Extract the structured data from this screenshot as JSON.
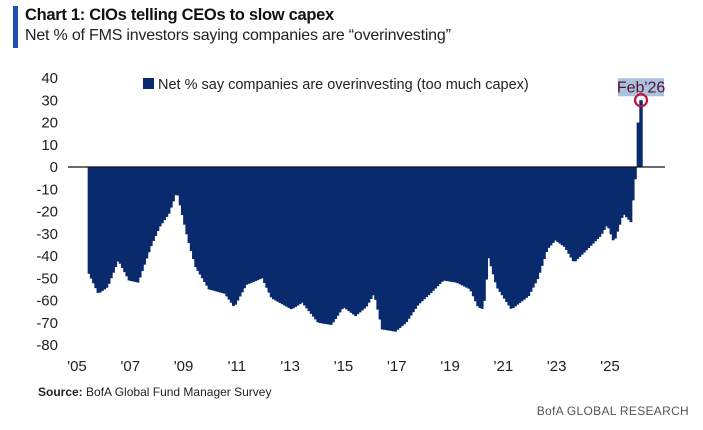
{
  "header": {
    "title": "Chart 1: CIOs telling CEOs to slow capex",
    "subtitle": "Net % of FMS investors saying companies are “overinvesting”"
  },
  "footer": {
    "source_label": "Source:",
    "source_text": "BofA Global Fund Manager Survey",
    "brand": "BofA GLOBAL RESEARCH"
  },
  "colors": {
    "bar": "#0a2a6e",
    "accent": "#1f4fb5",
    "highlight": "#c0143c",
    "annotation_bg": "#a9c3dd",
    "annotation_text": "#5a1030"
  },
  "chart_data": {
    "type": "bar",
    "title": "Chart 1: CIOs telling CEOs to slow capex",
    "subtitle": "Net % of FMS investors saying companies are “overinvesting”",
    "legend": {
      "label": "Net % say companies are overinvesting (too much capex)",
      "placement": "top-left"
    },
    "ylim": [
      -80,
      40
    ],
    "yticks": [
      "40",
      "30",
      "20",
      "10",
      "0",
      "-10",
      "-20",
      "-30",
      "-40",
      "-50",
      "-60",
      "-70",
      "-80"
    ],
    "ytick_values": [
      40,
      30,
      20,
      10,
      0,
      -10,
      -20,
      -30,
      -40,
      -50,
      -60,
      -70,
      -80
    ],
    "xlim": [
      2005,
      2026.6
    ],
    "xticks": [
      "'05",
      "'07",
      "'09",
      "'11",
      "'13",
      "'15",
      "'17",
      "'19",
      "'21",
      "'23",
      "'25"
    ],
    "xtick_values": [
      2005,
      2007,
      2009,
      2011,
      2013,
      2015,
      2017,
      2019,
      2021,
      2023,
      2025
    ],
    "annotation": {
      "label": "Feb'26",
      "x": 2026.1,
      "y": 30
    },
    "series": [
      {
        "name": "Net % say companies are overinvesting (too much capex)",
        "points": [
          [
            2005.4,
            -48
          ],
          [
            2005.75,
            -57
          ],
          [
            2006.1,
            -54
          ],
          [
            2006.5,
            -42
          ],
          [
            2006.9,
            -51
          ],
          [
            2007.25,
            -52
          ],
          [
            2007.45,
            -45
          ],
          [
            2007.75,
            -35
          ],
          [
            2008.05,
            -27
          ],
          [
            2008.4,
            -21
          ],
          [
            2008.7,
            -11
          ],
          [
            2008.85,
            -19
          ],
          [
            2009.1,
            -32
          ],
          [
            2009.4,
            -45
          ],
          [
            2009.9,
            -55
          ],
          [
            2010.5,
            -57
          ],
          [
            2010.85,
            -63
          ],
          [
            2011.3,
            -53
          ],
          [
            2011.9,
            -50
          ],
          [
            2012.25,
            -59
          ],
          [
            2013.0,
            -64
          ],
          [
            2013.4,
            -61
          ],
          [
            2014.0,
            -70
          ],
          [
            2014.5,
            -71
          ],
          [
            2014.95,
            -63
          ],
          [
            2015.4,
            -67
          ],
          [
            2015.8,
            -63
          ],
          [
            2016.1,
            -57
          ],
          [
            2016.4,
            -73
          ],
          [
            2016.9,
            -74
          ],
          [
            2017.3,
            -70
          ],
          [
            2017.75,
            -62
          ],
          [
            2018.2,
            -57
          ],
          [
            2018.7,
            -51
          ],
          [
            2019.2,
            -52
          ],
          [
            2019.7,
            -55
          ],
          [
            2020.0,
            -63
          ],
          [
            2020.2,
            -64
          ],
          [
            2020.4,
            -41
          ],
          [
            2020.7,
            -54
          ],
          [
            2021.25,
            -64
          ],
          [
            2021.9,
            -58
          ],
          [
            2022.25,
            -50
          ],
          [
            2022.6,
            -37
          ],
          [
            2022.9,
            -33
          ],
          [
            2023.25,
            -36
          ],
          [
            2023.6,
            -43
          ],
          [
            2024.1,
            -37
          ],
          [
            2024.6,
            -31
          ],
          [
            2024.85,
            -26
          ],
          [
            2025.1,
            -34
          ],
          [
            2025.45,
            -21
          ],
          [
            2025.75,
            -25
          ],
          [
            2025.85,
            -10
          ],
          [
            2025.95,
            -1
          ],
          [
            2026.0,
            20
          ],
          [
            2026.1,
            30
          ]
        ]
      }
    ]
  }
}
